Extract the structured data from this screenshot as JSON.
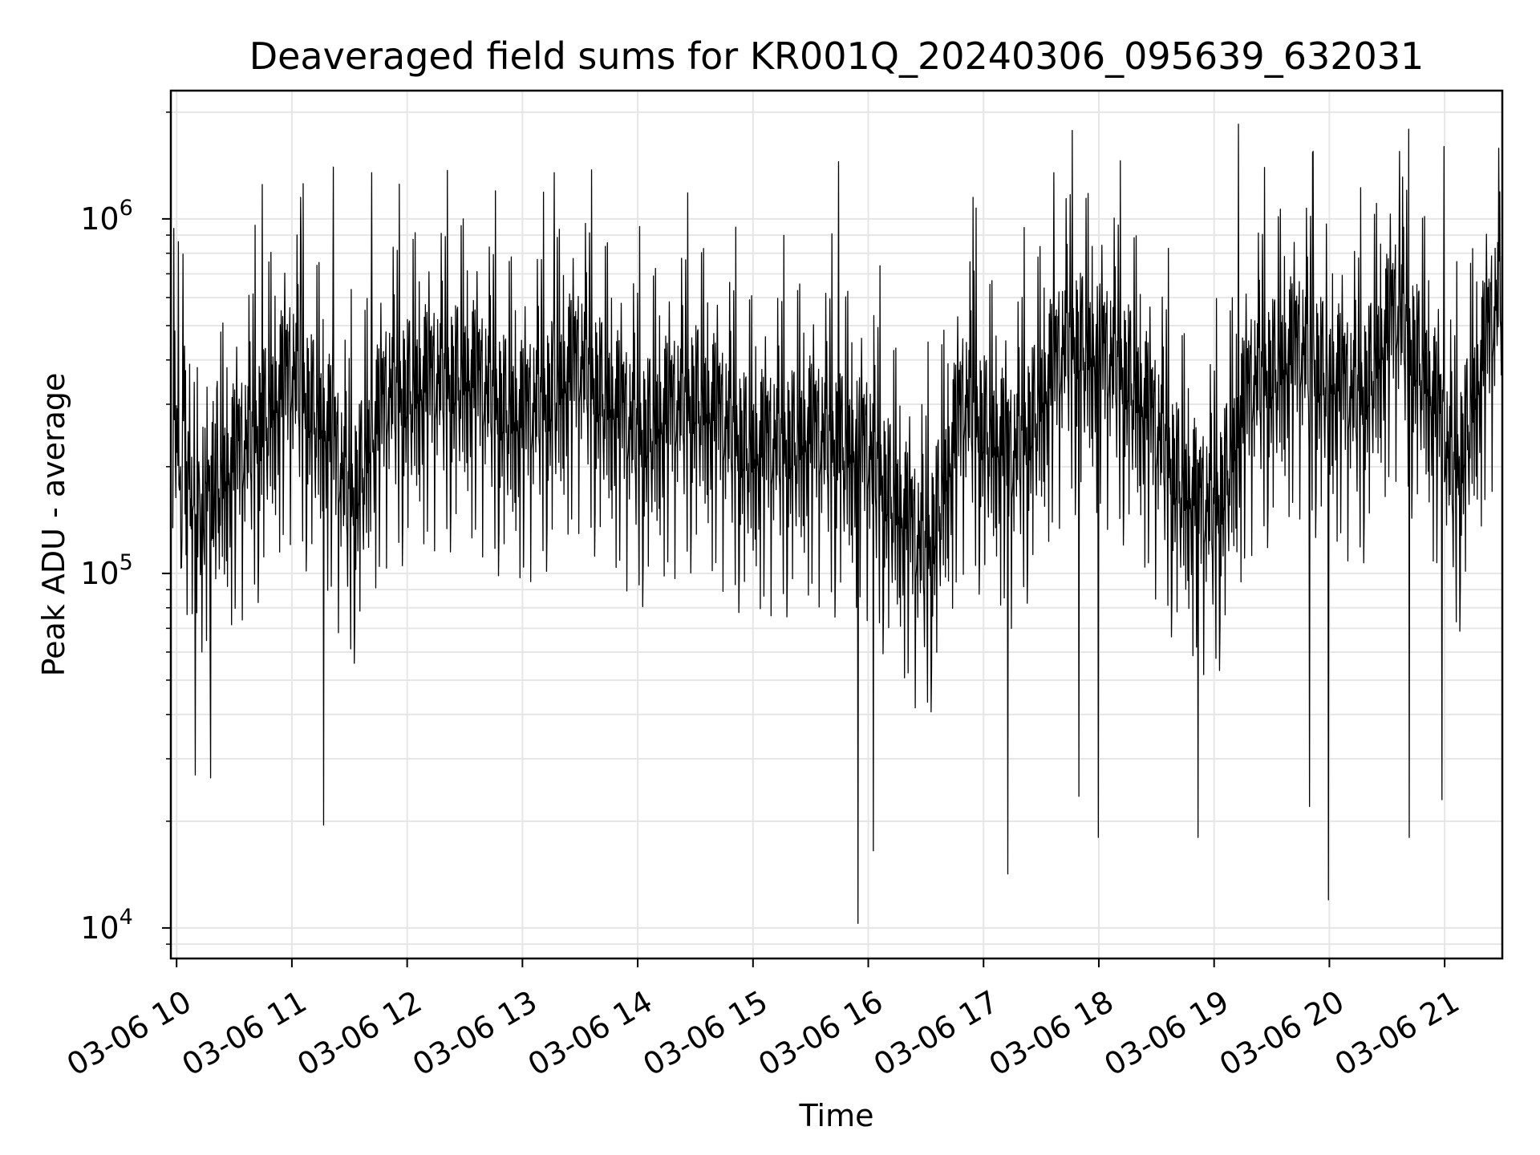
{
  "chart_data": {
    "type": "line",
    "title": "Deaveraged field sums for KR001Q_20240306_095639_632031",
    "xlabel": "Time",
    "ylabel": "Peak ADU - average",
    "yscale": "log",
    "ylim": [
      8200,
      2300000
    ],
    "xlim": [
      "2024-03-06 09:57",
      "2024-03-06 21:30"
    ],
    "grid": true,
    "x_ticks": [
      {
        "value": "2024-03-06 10:00",
        "label": "03-06 10"
      },
      {
        "value": "2024-03-06 11:00",
        "label": "03-06 11"
      },
      {
        "value": "2024-03-06 12:00",
        "label": "03-06 12"
      },
      {
        "value": "2024-03-06 13:00",
        "label": "03-06 13"
      },
      {
        "value": "2024-03-06 14:00",
        "label": "03-06 14"
      },
      {
        "value": "2024-03-06 15:00",
        "label": "03-06 15"
      },
      {
        "value": "2024-03-06 16:00",
        "label": "03-06 16"
      },
      {
        "value": "2024-03-06 17:00",
        "label": "03-06 17"
      },
      {
        "value": "2024-03-06 18:00",
        "label": "03-06 18"
      },
      {
        "value": "2024-03-06 19:00",
        "label": "03-06 19"
      },
      {
        "value": "2024-03-06 20:00",
        "label": "03-06 20"
      },
      {
        "value": "2024-03-06 21:00",
        "label": "03-06 21"
      }
    ],
    "y_ticks": [
      {
        "value": 10000,
        "base": "10",
        "exp": "4"
      },
      {
        "value": 100000,
        "base": "10",
        "exp": "5"
      },
      {
        "value": 1000000,
        "base": "10",
        "exp": "6"
      }
    ],
    "series": [
      {
        "color": "#000000",
        "trend": [
          {
            "x": "2024-03-06 09:57",
            "y": 200000
          },
          {
            "x": "2024-03-06 10:15",
            "y": 130000
          },
          {
            "x": "2024-03-06 10:40",
            "y": 200000
          },
          {
            "x": "2024-03-06 11:00",
            "y": 300000
          },
          {
            "x": "2024-03-06 11:20",
            "y": 200000
          },
          {
            "x": "2024-03-06 11:30",
            "y": 130000
          },
          {
            "x": "2024-03-06 11:50",
            "y": 260000
          },
          {
            "x": "2024-03-06 12:30",
            "y": 300000
          },
          {
            "x": "2024-03-06 13:00",
            "y": 220000
          },
          {
            "x": "2024-03-06 13:30",
            "y": 320000
          },
          {
            "x": "2024-03-06 14:00",
            "y": 200000
          },
          {
            "x": "2024-03-06 14:30",
            "y": 260000
          },
          {
            "x": "2024-03-06 15:00",
            "y": 180000
          },
          {
            "x": "2024-03-06 15:30",
            "y": 200000
          },
          {
            "x": "2024-03-06 16:00",
            "y": 180000
          },
          {
            "x": "2024-03-06 16:30",
            "y": 90000
          },
          {
            "x": "2024-03-06 16:50",
            "y": 250000
          },
          {
            "x": "2024-03-06 17:15",
            "y": 170000
          },
          {
            "x": "2024-03-06 17:45",
            "y": 380000
          },
          {
            "x": "2024-03-06 18:15",
            "y": 300000
          },
          {
            "x": "2024-03-06 18:45",
            "y": 140000
          },
          {
            "x": "2024-03-06 19:00",
            "y": 120000
          },
          {
            "x": "2024-03-06 19:20",
            "y": 280000
          },
          {
            "x": "2024-03-06 19:45",
            "y": 350000
          },
          {
            "x": "2024-03-06 20:15",
            "y": 250000
          },
          {
            "x": "2024-03-06 20:35",
            "y": 450000
          },
          {
            "x": "2024-03-06 20:50",
            "y": 300000
          },
          {
            "x": "2024-03-06 21:05",
            "y": 150000
          },
          {
            "x": "2024-03-06 21:30",
            "y": 550000
          }
        ],
        "peaks": [
          {
            "x": "2024-03-06 09:59",
            "y": 940000
          },
          {
            "x": "2024-03-06 10:45",
            "y": 1250000
          },
          {
            "x": "2024-03-06 11:05",
            "y": 1150000
          },
          {
            "x": "2024-03-06 11:22",
            "y": 1400000
          },
          {
            "x": "2024-03-06 11:42",
            "y": 1350000
          },
          {
            "x": "2024-03-06 13:17",
            "y": 1350000
          },
          {
            "x": "2024-03-06 15:45",
            "y": 1450000
          },
          {
            "x": "2024-03-06 16:55",
            "y": 1150000
          },
          {
            "x": "2024-03-06 17:37",
            "y": 1350000
          },
          {
            "x": "2024-03-06 19:13",
            "y": 1850000
          },
          {
            "x": "2024-03-06 19:52",
            "y": 1550000
          },
          {
            "x": "2024-03-06 20:37",
            "y": 1550000
          },
          {
            "x": "2024-03-06 21:00",
            "y": 1600000
          }
        ],
        "troughs": [
          {
            "x": "2024-03-06 10:10",
            "y": 27000
          },
          {
            "x": "2024-03-06 10:18",
            "y": 26500
          },
          {
            "x": "2024-03-06 11:17",
            "y": 19500
          },
          {
            "x": "2024-03-06 15:55",
            "y": 10300
          },
          {
            "x": "2024-03-06 16:03",
            "y": 16500
          },
          {
            "x": "2024-03-06 17:13",
            "y": 14200
          },
          {
            "x": "2024-03-06 17:50",
            "y": 23500
          },
          {
            "x": "2024-03-06 18:00",
            "y": 18000
          },
          {
            "x": "2024-03-06 18:52",
            "y": 18000
          },
          {
            "x": "2024-03-06 19:50",
            "y": 22000
          },
          {
            "x": "2024-03-06 20:00",
            "y": 12000
          },
          {
            "x": "2024-03-06 20:42",
            "y": 18000
          },
          {
            "x": "2024-03-06 20:59",
            "y": 23000
          }
        ]
      }
    ]
  }
}
